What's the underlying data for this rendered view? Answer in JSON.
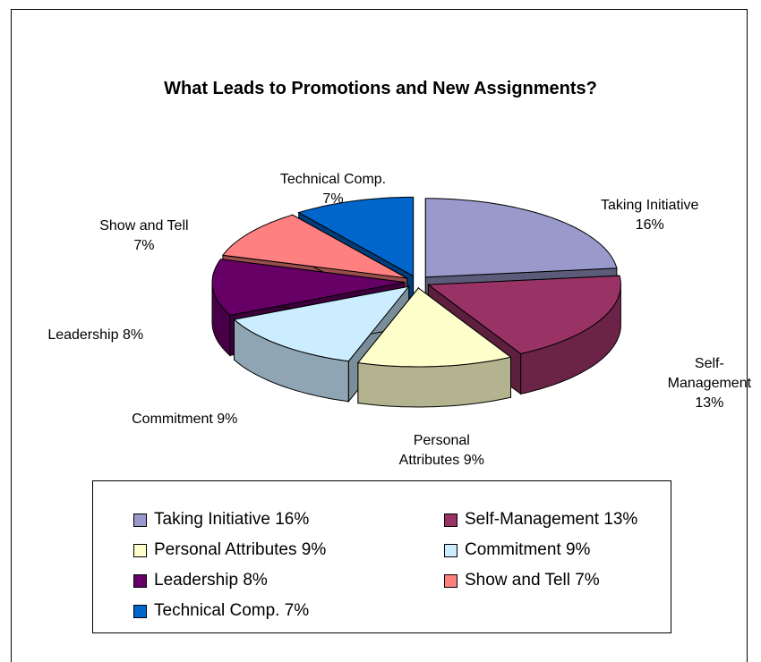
{
  "chart_data": {
    "type": "pie3d",
    "title": "What Leads to Promotions and New Assignments?",
    "categories": [
      "Taking Initiative",
      "Self-Management",
      "Personal Attributes",
      "Commitment",
      "Leadership",
      "Show and Tell",
      "Technical Comp."
    ],
    "values": [
      16,
      13,
      9,
      9,
      8,
      7,
      7
    ],
    "value_labels": [
      "16%",
      "13%",
      "9%",
      "9%",
      "8%",
      "7%",
      "7%"
    ],
    "colors": [
      "#9999cc",
      "#993366",
      "#ffffcc",
      "#ccecff",
      "#660066",
      "#ff8080",
      "#0066cc"
    ],
    "legend": "bottom"
  }
}
